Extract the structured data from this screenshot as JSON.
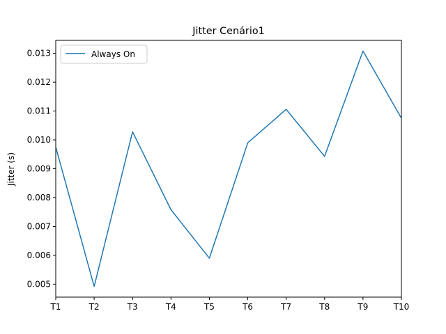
{
  "chart_data": {
    "type": "line",
    "title": "Jitter Cenário1",
    "xlabel": "",
    "ylabel": "Jitter (s)",
    "categories": [
      "T1",
      "T2",
      "T3",
      "T4",
      "T5",
      "T6",
      "T7",
      "T8",
      "T9",
      "T10"
    ],
    "series": [
      {
        "name": "Always On",
        "color": "#1f77b4",
        "values": [
          0.00975,
          0.00492,
          0.01028,
          0.00758,
          0.0059,
          0.0099,
          0.01106,
          0.00943,
          0.01308,
          0.01075
        ]
      }
    ],
    "ylim": [
      0.00455,
      0.01345
    ],
    "yticks": [
      "0.005",
      "0.006",
      "0.007",
      "0.008",
      "0.009",
      "0.010",
      "0.011",
      "0.012",
      "0.013"
    ],
    "grid": false,
    "legend_position": "upper left"
  }
}
